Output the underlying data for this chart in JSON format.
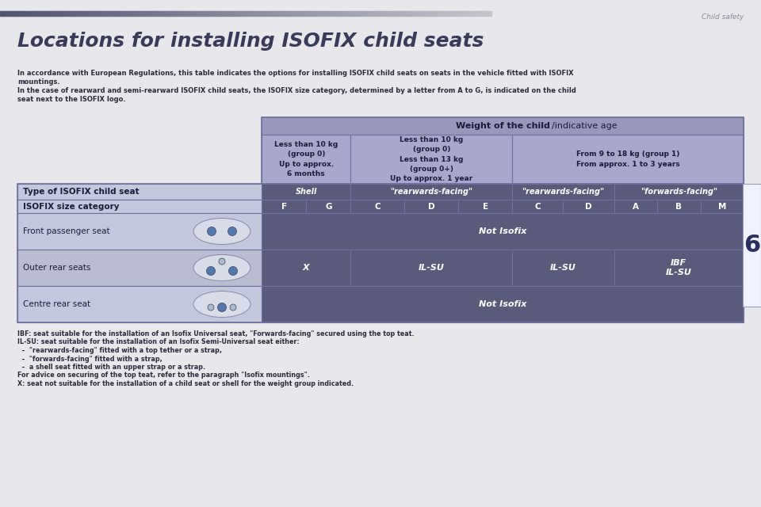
{
  "page_bg": "#e8e8ec",
  "title": "Locations for installing ISOFIX child seats",
  "title_color": "#3a3a5a",
  "header_text": "Child safety",
  "header_color": "#888899",
  "table_header_bg": "#9898bb",
  "table_subheader_bg": "#a8a8cc",
  "table_row_label_bg": "#c4c8dc",
  "table_row_label_bg2": "#babcd0",
  "table_dark_bg": "#5a5a7a",
  "table_border_color": "#7070a0",
  "dark_text": "#1a1a3a",
  "white_text": "#ffffff",
  "light_text": "#e8e8f8",
  "intro_text_color": "#2a2a3a",
  "footer_text_color": "#2a2a3a",
  "gradient_color_left": "#5a5a80",
  "gradient_color_right": "#c8c8e0",
  "weight_header": "Weight of the child/indicative age",
  "size_row_vals": [
    "F",
    "G",
    "C",
    "D",
    "E",
    "C",
    "D",
    "A",
    "B",
    "M"
  ],
  "seat_rows": [
    {
      "label": "Front passenger seat",
      "data": "Not Isofix"
    },
    {
      "label": "Outer rear seats",
      "data": [
        "X",
        "IL-SU",
        "IL-SU",
        "IBF\nIL-SU"
      ]
    },
    {
      "label": "Centre rear seat",
      "data": "Not Isofix"
    }
  ],
  "footer_lines": [
    "IBF: seat suitable for the installation of an Isofix Universal seat, \"Forwards-facing\" secured using the top teat.",
    "IL-SU: seat suitable for the installation of an Isofix Semi-Universal seat either:",
    "  –  \"rearwards-facing\" fitted with a top tether or a strap,",
    "  –  \"forwards-facing\" fitted with a strap,",
    "  –  a shell seat fitted with an upper strap or a strap.",
    "For advice on securing of the top teat, refer to the paragraph \"Isofix mountings\".",
    "X: seat not suitable for the installation of a child seat or shell for the weight group indicated."
  ],
  "chapter_number": "6"
}
